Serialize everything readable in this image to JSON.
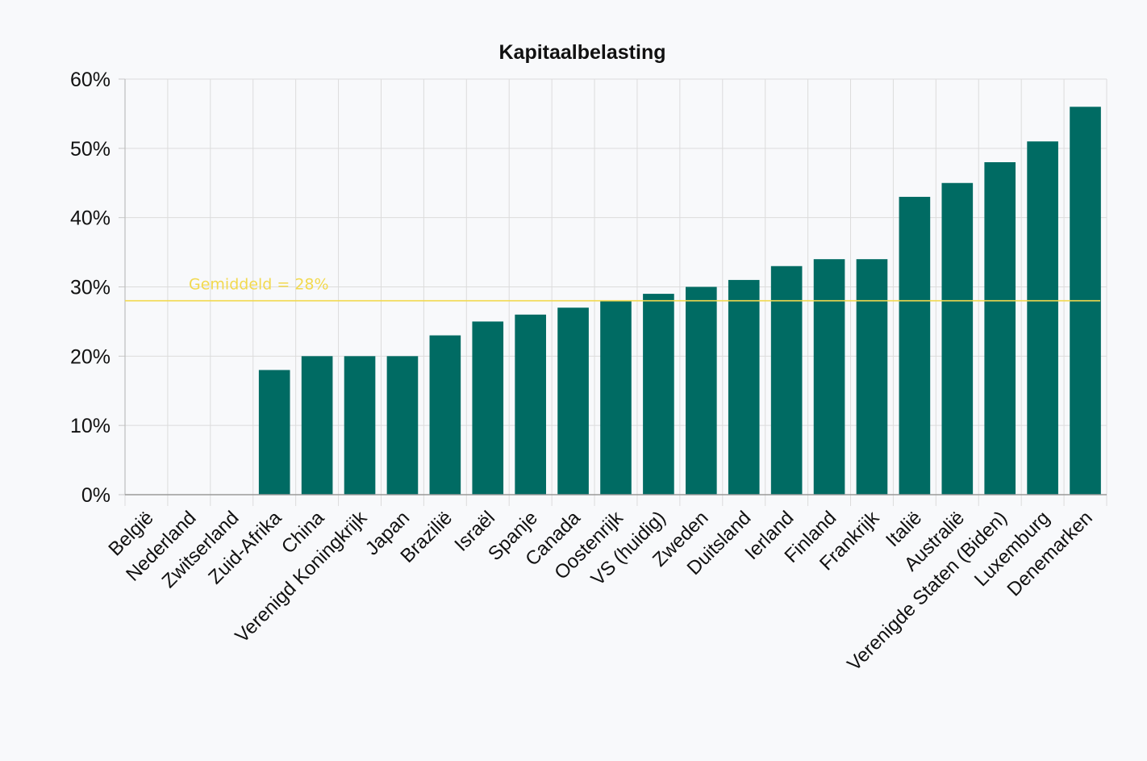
{
  "chart_data": {
    "type": "bar",
    "title": "Kapitaalbelasting",
    "xlabel": "",
    "ylabel": "",
    "ylim": [
      0,
      60
    ],
    "yticks": [
      "0%",
      "10%",
      "20%",
      "30%",
      "40%",
      "50%",
      "60%"
    ],
    "ytick_values": [
      0,
      10,
      20,
      30,
      40,
      50,
      60
    ],
    "grid": true,
    "categories": [
      "België",
      "Nederland",
      "Zwitserland",
      "Zuid-Afrika",
      "China",
      "Verenigd Koningkrijk",
      "Japan",
      "Brazilië",
      "Israël",
      "Spanje",
      "Canada",
      "Oostenrijk",
      "VS (huidig)",
      "Zweden",
      "Duitsland",
      "Ierland",
      "Finland",
      "Frankrijk",
      "Italië",
      "Australië",
      "Verenigde Staten (Biden)",
      "Luxemburg",
      "Denemarken"
    ],
    "values": [
      0,
      0,
      0,
      18,
      20,
      20,
      20,
      23,
      25,
      26,
      27,
      28,
      29,
      30,
      31,
      33,
      34,
      34,
      43,
      45,
      48,
      51,
      56
    ],
    "bar_color": "#006b63",
    "reference_line": {
      "value": 28,
      "label": "Gemiddeld = 28%",
      "color": "#f2d94e"
    }
  }
}
